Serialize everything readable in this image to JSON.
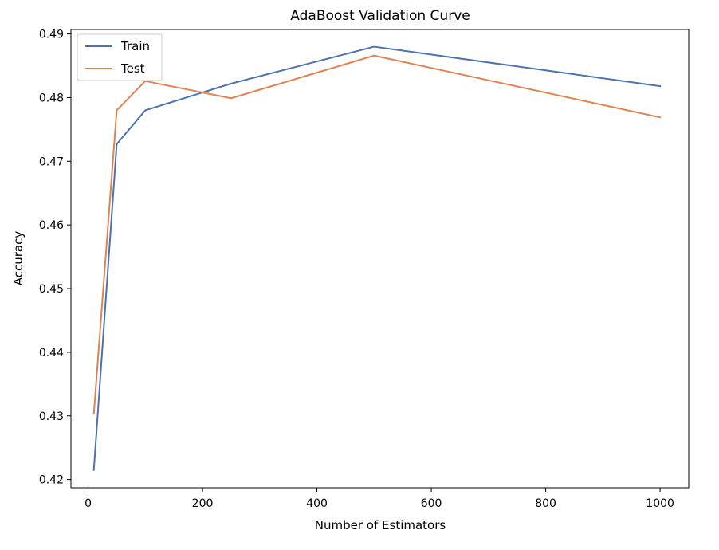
{
  "chart_data": {
    "type": "line",
    "title": "AdaBoost Validation Curve",
    "xlabel": "Number of Estimators",
    "ylabel": "Accuracy",
    "x": [
      10,
      50,
      100,
      250,
      500,
      1000
    ],
    "xlim": [
      -30,
      1050
    ],
    "ylim": [
      0.4187,
      0.4907
    ],
    "xticks": [
      0,
      200,
      400,
      600,
      800,
      1000
    ],
    "yticks": [
      0.42,
      0.43,
      0.44,
      0.45,
      0.46,
      0.47,
      0.48,
      0.49
    ],
    "ytick_labels": [
      "0.42",
      "0.43",
      "0.44",
      "0.45",
      "0.46",
      "0.47",
      "0.48",
      "0.49"
    ],
    "grid": false,
    "legend_position": "top-left",
    "series": [
      {
        "name": "Train",
        "color": "#4c72b0",
        "values": [
          0.4215,
          0.4727,
          0.478,
          0.4822,
          0.488,
          0.4818
        ]
      },
      {
        "name": "Test",
        "color": "#dd8452",
        "values": [
          0.4303,
          0.478,
          0.4826,
          0.4799,
          0.4866,
          0.4769
        ]
      }
    ]
  }
}
